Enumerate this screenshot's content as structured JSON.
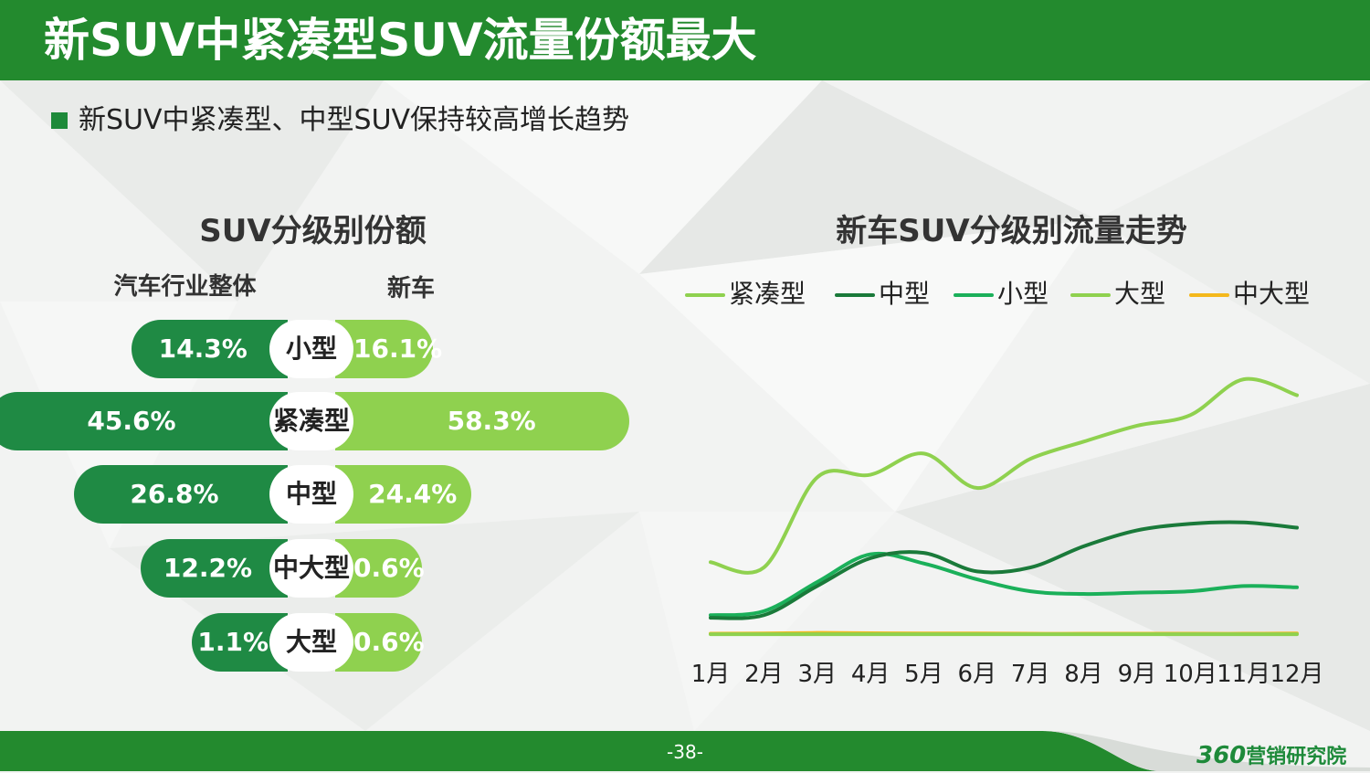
{
  "header": {
    "title": "新SUV中紧凑型SUV流量份额最大"
  },
  "subtitle": "新SUV中紧凑型、中型SUV保持较高增长趋势",
  "left_panel": {
    "title": "SUV分级别份额",
    "col_left": "汽车行业整体",
    "col_right": "新车",
    "rows": [
      {
        "category": "小型",
        "overall": "14.3%",
        "new": "16.1%"
      },
      {
        "category": "紧凑型",
        "overall": "45.6%",
        "new": "58.3%"
      },
      {
        "category": "中型",
        "overall": "26.8%",
        "new": "24.4%"
      },
      {
        "category": "中大型",
        "overall": "12.2%",
        "new": "0.6%"
      },
      {
        "category": "大型",
        "overall": "1.1%",
        "new": "0.6%"
      }
    ]
  },
  "right_panel": {
    "title": "新车SUV分级别流量走势"
  },
  "chart_data": [
    {
      "type": "bar",
      "title": "SUV分级别份额",
      "categories": [
        "小型",
        "紧凑型",
        "中型",
        "中大型",
        "大型"
      ],
      "series": [
        {
          "name": "汽车行业整体",
          "values": [
            14.3,
            45.6,
            26.8,
            12.2,
            1.1
          ]
        },
        {
          "name": "新车",
          "values": [
            16.1,
            58.3,
            24.4,
            0.6,
            0.6
          ]
        }
      ],
      "legend": "top"
    },
    {
      "type": "line",
      "title": "新车SUV分级别流量走势",
      "categories": [
        "1月",
        "2月",
        "3月",
        "4月",
        "5月",
        "6月",
        "7月",
        "8月",
        "9月",
        "10月",
        "11月",
        "12月"
      ],
      "ylim": [
        0,
        100
      ],
      "grid": false,
      "legend": "top",
      "series": [
        {
          "name": "紧凑型",
          "color": "#8fd14f",
          "values": [
            27.5,
            25.5,
            59.5,
            60.5,
            68.5,
            55.5,
            66.5,
            73,
            79,
            83,
            96.5,
            90.5
          ]
        },
        {
          "name": "中型",
          "color": "#1a7a3a",
          "values": [
            6.5,
            7.5,
            18.5,
            29,
            31,
            24,
            25.5,
            33.5,
            39.5,
            42,
            42.5,
            40.5
          ]
        },
        {
          "name": "小型",
          "color": "#1bb05a",
          "values": [
            7.5,
            9,
            20,
            30.5,
            27,
            21,
            16.5,
            15.5,
            16,
            16.5,
            18.5,
            18
          ]
        },
        {
          "name": "大型",
          "color": "#8fd14f",
          "values": [
            0.3,
            0.3,
            0.3,
            0.3,
            0.3,
            0.3,
            0.3,
            0.3,
            0.3,
            0.3,
            0.3,
            0.3
          ]
        },
        {
          "name": "中大型",
          "color": "#f4b81c",
          "values": [
            0.5,
            0.6,
            0.8,
            0.7,
            0.6,
            0.6,
            0.5,
            0.5,
            0.5,
            0.5,
            0.5,
            0.6
          ]
        }
      ]
    }
  ],
  "footer": {
    "page": "-38-",
    "brand_num": "360",
    "brand_name": "营销研究院"
  },
  "colors": {
    "primary_green": "#238a2e",
    "dark_green": "#1f8a44",
    "light_green": "#8fd14f"
  }
}
